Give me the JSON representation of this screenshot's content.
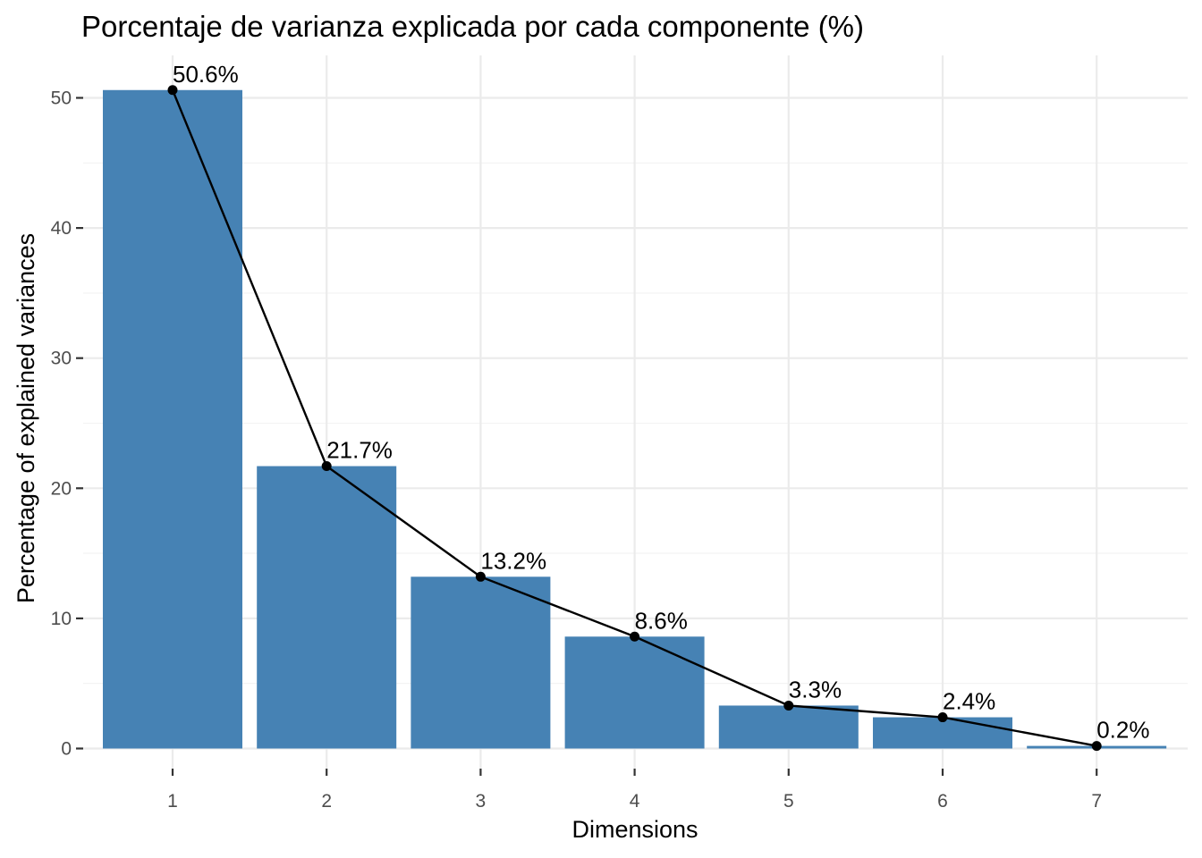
{
  "chart_data": {
    "type": "bar",
    "title": "Porcentaje de varianza explicada por cada componente (%)",
    "xlabel": "Dimensions",
    "ylabel": "Percentage of explained variances",
    "categories": [
      "1",
      "2",
      "3",
      "4",
      "5",
      "6",
      "7"
    ],
    "values": [
      50.6,
      21.7,
      13.2,
      8.6,
      3.3,
      2.4,
      0.2
    ],
    "data_labels": [
      "50.6%",
      "21.7%",
      "13.2%",
      "8.6%",
      "3.3%",
      "2.4%",
      "0.2%"
    ],
    "overlay_line": true,
    "ylim": [
      0,
      53
    ],
    "yticks": [
      0,
      10,
      20,
      30,
      40,
      50
    ],
    "grid": true,
    "legend": "none",
    "colors": {
      "bar": "#4682B4",
      "line": "#000000",
      "point": "#000000"
    }
  }
}
